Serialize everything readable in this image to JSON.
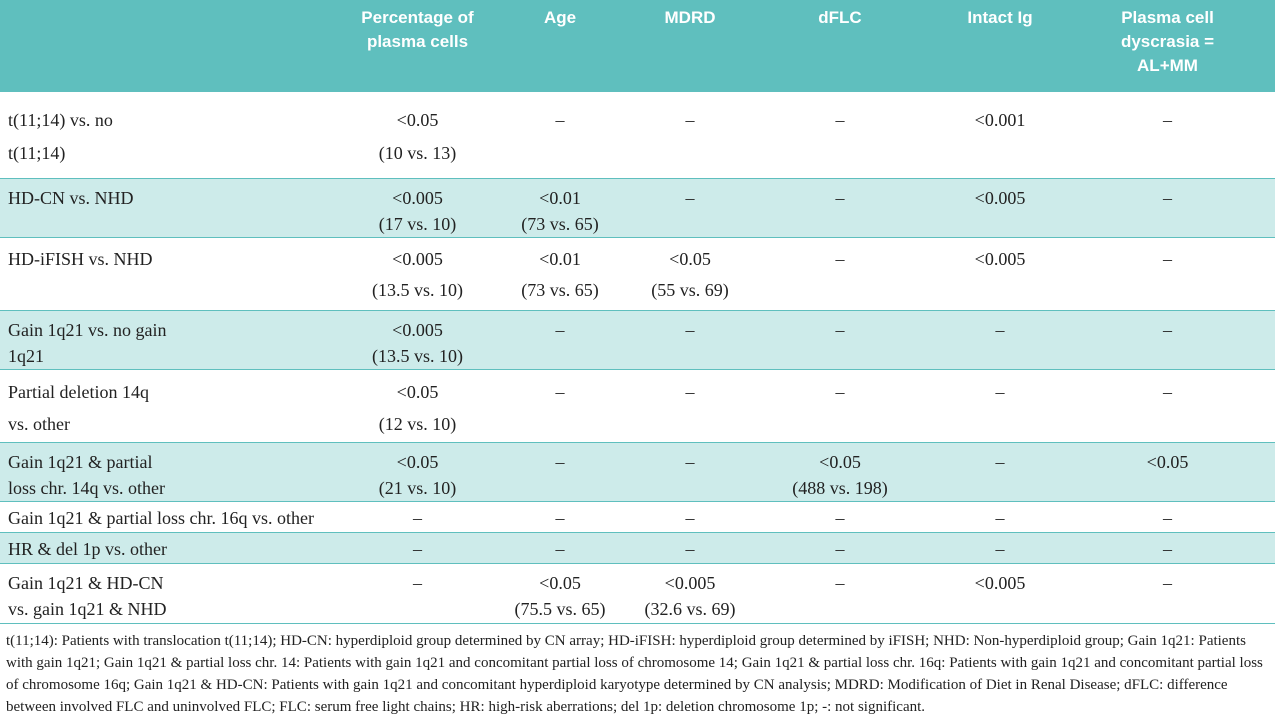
{
  "table": {
    "header": [
      [
        ""
      ],
      [
        "Percentage of",
        "plasma cells"
      ],
      [
        "Age"
      ],
      [
        "MDRD"
      ],
      [
        "dFLC"
      ],
      [
        "Intact Ig"
      ],
      [
        "Plasma cell",
        "dyscrasia =",
        "AL+MM"
      ]
    ],
    "rows": [
      [
        [
          "t(11;14) vs. no",
          "t(11;14)"
        ],
        [
          "<0.05",
          "(10 vs. 13)"
        ],
        [
          "–"
        ],
        [
          "–"
        ],
        [
          "–"
        ],
        [
          "<0.001"
        ],
        [
          "–"
        ]
      ],
      [
        [
          "HD-CN vs. NHD"
        ],
        [
          "<0.005",
          "(17 vs. 10)"
        ],
        [
          "<0.01",
          "(73 vs. 65)"
        ],
        [
          "–"
        ],
        [
          "–"
        ],
        [
          "<0.005"
        ],
        [
          "–"
        ]
      ],
      [
        [
          "HD-iFISH vs. NHD"
        ],
        [
          "<0.005",
          "(13.5 vs. 10)"
        ],
        [
          "<0.01",
          "(73 vs. 65)"
        ],
        [
          "<0.05",
          "(55 vs. 69)"
        ],
        [
          "–"
        ],
        [
          "<0.005"
        ],
        [
          "–"
        ]
      ],
      [
        [
          "Gain 1q21 vs. no gain",
          "1q21"
        ],
        [
          "<0.005",
          "(13.5 vs. 10)"
        ],
        [
          "–"
        ],
        [
          "–"
        ],
        [
          "–"
        ],
        [
          "–"
        ],
        [
          "–"
        ]
      ],
      [
        [
          "Partial deletion 14q",
          "vs. other"
        ],
        [
          "<0.05",
          "(12 vs. 10)"
        ],
        [
          "–"
        ],
        [
          "–"
        ],
        [
          "–"
        ],
        [
          "–"
        ],
        [
          "–"
        ]
      ],
      [
        [
          "Gain 1q21 & partial",
          "loss chr. 14q vs. other"
        ],
        [
          "<0.05",
          "(21 vs. 10)"
        ],
        [
          "–"
        ],
        [
          "–"
        ],
        [
          "<0.05",
          "(488 vs. 198)"
        ],
        [
          "–"
        ],
        [
          "<0.05"
        ]
      ],
      [
        [
          "Gain 1q21 & partial loss chr. 16q vs. other"
        ],
        [
          "–"
        ],
        [
          "–"
        ],
        [
          "–"
        ],
        [
          "–"
        ],
        [
          "–"
        ],
        [
          "–"
        ]
      ],
      [
        [
          "HR & del 1p vs. other"
        ],
        [
          "–"
        ],
        [
          "–"
        ],
        [
          "–"
        ],
        [
          "–"
        ],
        [
          "–"
        ],
        [
          "–"
        ]
      ],
      [
        [
          "Gain 1q21 & HD-CN",
          "vs. gain 1q21 & NHD"
        ],
        [
          "–"
        ],
        [
          "<0.05",
          "(75.5 vs. 65)"
        ],
        [
          "<0.005",
          "(32.6 vs. 69)"
        ],
        [
          "–"
        ],
        [
          "<0.005"
        ],
        [
          "–"
        ]
      ]
    ]
  },
  "footnote": "t(11;14): Patients with translocation t(11;14); HD-CN: hyperdiploid group determined by CN array; HD-iFISH: hyperdiploid group determined by iFISH; NHD: Non-hyperdiploid group; Gain 1q21: Patients with gain 1q21; Gain 1q21 & partial loss chr. 14: Patients with gain 1q21 and concomitant partial loss of chromosome 14; Gain 1q21 & partial loss chr. 16q: Patients with gain 1q21 and concomitant partial loss of chromosome 16q; Gain 1q21 & HD-CN: Patients with gain 1q21 and concomitant hyperdiploid karyotype determined by CN analysis; MDRD: Modification of Diet in Renal Disease; dFLC: difference between involved FLC and uninvolved FLC; FLC: serum free light chains; HR: high-risk aberrations; del 1p: deletion chromosome 1p; -: not significant."
}
